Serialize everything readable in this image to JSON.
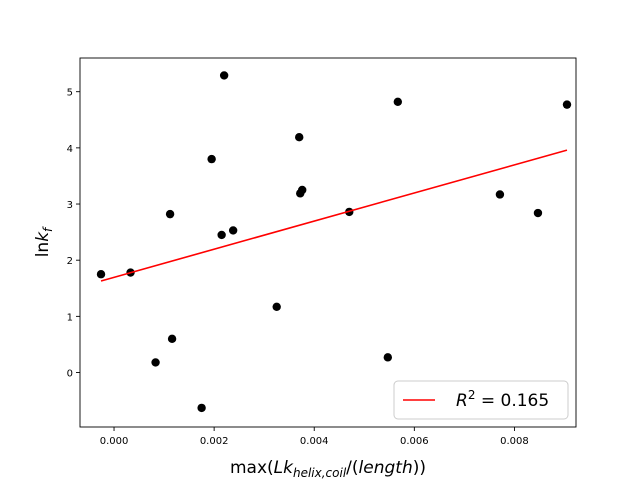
{
  "chart_data": {
    "type": "scatter",
    "title": "",
    "xlabel": "max(Lk_{helix,coil}/(length))",
    "ylabel": "lnk_f",
    "xlim": [
      -0.00068,
      0.00923
    ],
    "ylim": [
      -0.97,
      5.6
    ],
    "xticks": [
      0.0,
      0.002,
      0.004,
      0.006,
      0.008
    ],
    "xtick_labels": [
      "0.000",
      "0.002",
      "0.004",
      "0.006",
      "0.008"
    ],
    "yticks": [
      0,
      1,
      2,
      3,
      4,
      5
    ],
    "ytick_labels": [
      "0",
      "1",
      "2",
      "3",
      "4",
      "5"
    ],
    "grid": false,
    "legend": {
      "placement": "lower-right",
      "entries": [
        "R^2 = 0.165"
      ]
    },
    "series": [
      {
        "kind": "points",
        "color": "#000000",
        "x": [
          -0.00026,
          0.00033,
          0.00083,
          0.00112,
          0.00116,
          0.00175,
          0.00195,
          0.00215,
          0.0022,
          0.00238,
          0.00325,
          0.0037,
          0.00372,
          0.00376,
          0.0047,
          0.00547,
          0.00567,
          0.00771,
          0.00847,
          0.00905
        ],
        "y": [
          1.75,
          1.78,
          0.18,
          2.82,
          0.6,
          -0.63,
          3.8,
          2.45,
          5.29,
          2.53,
          1.17,
          4.19,
          3.19,
          3.25,
          2.86,
          0.27,
          4.82,
          3.17,
          2.84,
          4.77
        ]
      },
      {
        "kind": "fit-line",
        "label": "R^2 = 0.165",
        "color": "#ff0000",
        "x": [
          -0.00026,
          0.00905
        ],
        "y": [
          1.63,
          3.96
        ]
      }
    ]
  }
}
